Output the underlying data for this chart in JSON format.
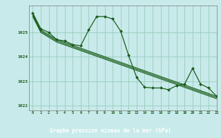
{
  "title": "Graphe pression niveau de la mer (hPa)",
  "bg_color": "#c8eaea",
  "grid_color": "#98ccbc",
  "line_color": "#1a5c1a",
  "label_bg": "#2a6c2a",
  "xlim": [
    -0.5,
    23
  ],
  "ylim": [
    1021.8,
    1026.1
  ],
  "yticks": [
    1022,
    1023,
    1024,
    1025
  ],
  "xticks": [
    0,
    1,
    2,
    3,
    4,
    5,
    6,
    7,
    8,
    9,
    10,
    11,
    12,
    13,
    14,
    15,
    16,
    17,
    18,
    19,
    20,
    21,
    22,
    23
  ],
  "series": [
    {
      "x": [
        0,
        1,
        2,
        3,
        4,
        5,
        6,
        7,
        8,
        9,
        10,
        11,
        12,
        13,
        14,
        15,
        16,
        17,
        18,
        19,
        20,
        21,
        22,
        23
      ],
      "y": [
        1025.8,
        1025.15,
        1025.0,
        1024.7,
        1024.65,
        1024.5,
        1024.45,
        1025.1,
        1025.65,
        1025.65,
        1025.55,
        1025.05,
        1024.05,
        1023.15,
        1022.75,
        1022.72,
        1022.72,
        1022.65,
        1022.82,
        1022.88,
        1023.52,
        1022.88,
        1022.72,
        1022.38
      ],
      "marker": "D",
      "ms": 2.0,
      "lw": 0.9
    },
    {
      "x": [
        0,
        1,
        3,
        23
      ],
      "y": [
        1025.75,
        1025.1,
        1024.7,
        1022.38
      ],
      "marker": null,
      "ms": 0,
      "lw": 0.8
    },
    {
      "x": [
        0,
        1,
        3,
        23
      ],
      "y": [
        1025.7,
        1025.05,
        1024.65,
        1022.33
      ],
      "marker": null,
      "ms": 0,
      "lw": 0.8
    },
    {
      "x": [
        0,
        1,
        3,
        23
      ],
      "y": [
        1025.65,
        1025.0,
        1024.6,
        1022.28
      ],
      "marker": null,
      "ms": 0,
      "lw": 0.8
    }
  ]
}
